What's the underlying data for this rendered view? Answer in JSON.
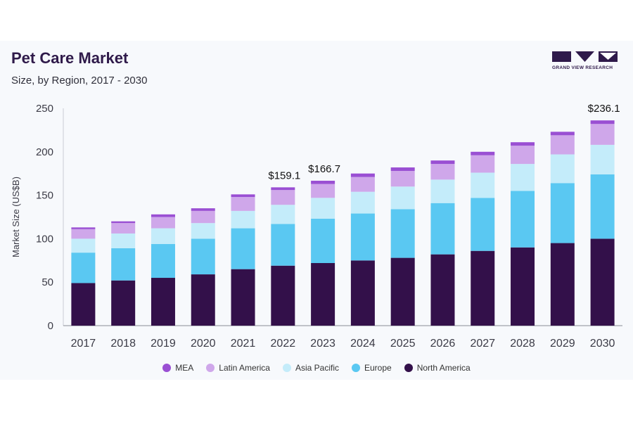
{
  "title": "Pet Care Market",
  "subtitle": "Size, by Region, 2017 - 2030",
  "brand": {
    "logo_text": "GRAND VIEW RESEARCH"
  },
  "colors": {
    "North America": "#33104a",
    "Europe": "#5ac8f2",
    "Asia Pacific": "#c4ecfa",
    "Latin America": "#cfa7ea",
    "MEA": "#9a4fd3"
  },
  "chart_data": {
    "type": "bar",
    "stacked": true,
    "ylabel": "Market Size (US$B)",
    "xlabel": "",
    "ylim": [
      0,
      250
    ],
    "yticks": [
      0,
      50,
      100,
      150,
      200,
      250
    ],
    "categories": [
      "2017",
      "2018",
      "2019",
      "2020",
      "2021",
      "2022",
      "2023",
      "2024",
      "2025",
      "2026",
      "2027",
      "2028",
      "2029",
      "2030"
    ],
    "series": [
      {
        "name": "North America",
        "values": [
          49,
          52,
          55,
          59,
          65,
          69,
          72,
          75,
          78,
          82,
          86,
          90,
          95,
          100
        ]
      },
      {
        "name": "Europe",
        "values": [
          35,
          37,
          39,
          41,
          47,
          48,
          51,
          54,
          56,
          59,
          61,
          65,
          69,
          74
        ]
      },
      {
        "name": "Asia Pacific",
        "values": [
          16,
          17,
          18,
          18,
          20,
          22,
          24,
          25,
          26,
          27,
          29,
          31,
          33,
          34
        ]
      },
      {
        "name": "Latin America",
        "values": [
          11,
          12,
          13,
          14,
          16,
          17,
          16,
          17,
          18,
          18,
          20,
          21,
          22,
          24
        ]
      },
      {
        "name": "MEA",
        "values": [
          2,
          2,
          3,
          3,
          3,
          3.1,
          3.7,
          4,
          4,
          4,
          4,
          4,
          4,
          4.1
        ]
      }
    ],
    "data_labels": [
      {
        "category": "2022",
        "text": "$159.1"
      },
      {
        "category": "2023",
        "text": "$166.7"
      },
      {
        "category": "2030",
        "text": "$236.1"
      }
    ],
    "legend": {
      "position": "bottom",
      "order": [
        "MEA",
        "Latin America",
        "Asia Pacific",
        "Europe",
        "North America"
      ]
    },
    "grid": false
  }
}
